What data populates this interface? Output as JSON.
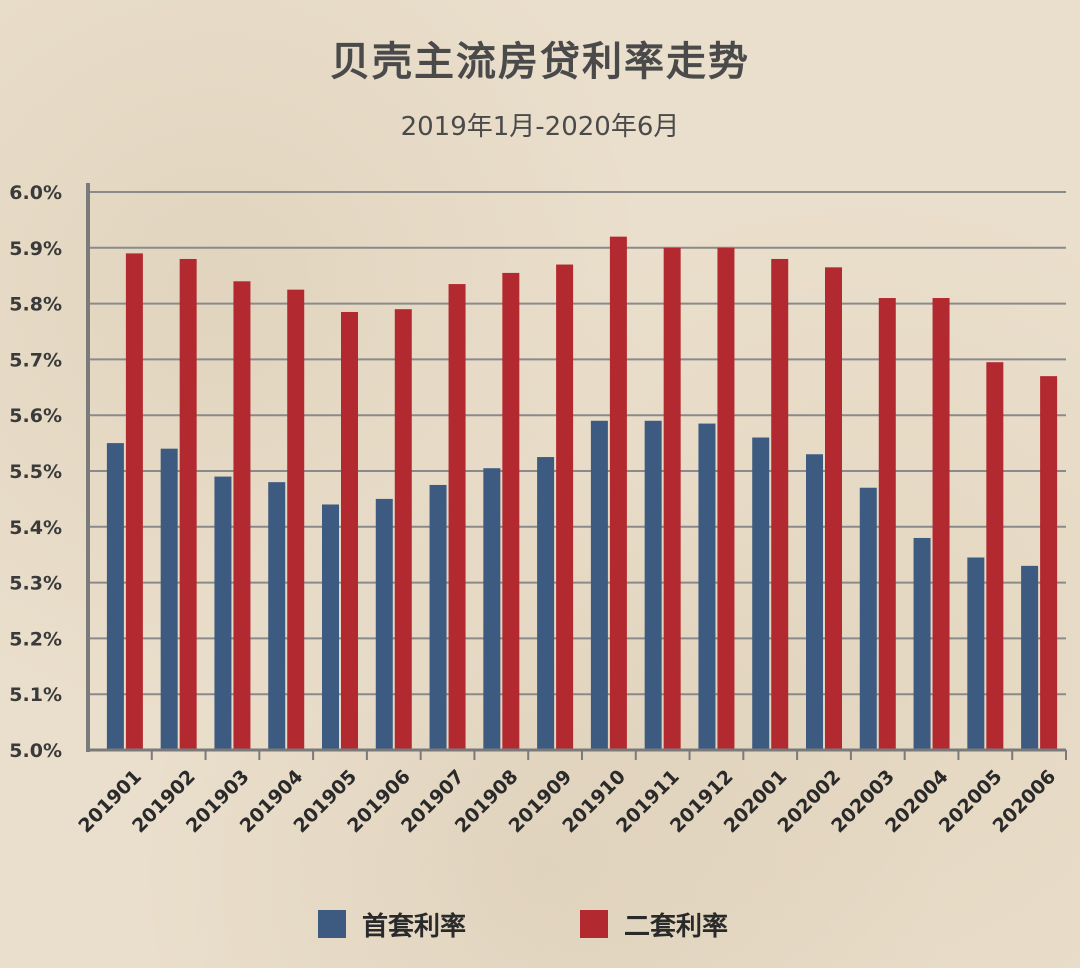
{
  "chart_data": {
    "type": "bar",
    "title": "贝壳主流房贷利率走势",
    "subtitle": "2019年1月-2020年6月",
    "categories": [
      "201901",
      "201902",
      "201903",
      "201904",
      "201905",
      "201906",
      "201907",
      "201908",
      "201909",
      "201910",
      "201911",
      "201912",
      "202001",
      "202002",
      "202003",
      "202004",
      "202005",
      "202006"
    ],
    "series": [
      {
        "name": "首套利率",
        "color": "#3d5a80",
        "values": [
          5.55,
          5.54,
          5.49,
          5.48,
          5.44,
          5.45,
          5.475,
          5.505,
          5.525,
          5.59,
          5.59,
          5.585,
          5.56,
          5.53,
          5.47,
          5.38,
          5.345,
          5.33
        ]
      },
      {
        "name": "二套利率",
        "color": "#b22a30",
        "values": [
          5.89,
          5.88,
          5.84,
          5.825,
          5.785,
          5.79,
          5.835,
          5.855,
          5.87,
          5.92,
          5.9,
          5.9,
          5.88,
          5.865,
          5.81,
          5.81,
          5.695,
          5.67
        ]
      }
    ],
    "ylim": [
      5.0,
      6.0
    ],
    "yticks": [
      "5.0%",
      "5.1%",
      "5.2%",
      "5.3%",
      "5.4%",
      "5.5%",
      "5.6%",
      "5.7%",
      "5.8%",
      "5.9%",
      "6.0%"
    ],
    "grid": true,
    "legend_position": "bottom"
  }
}
